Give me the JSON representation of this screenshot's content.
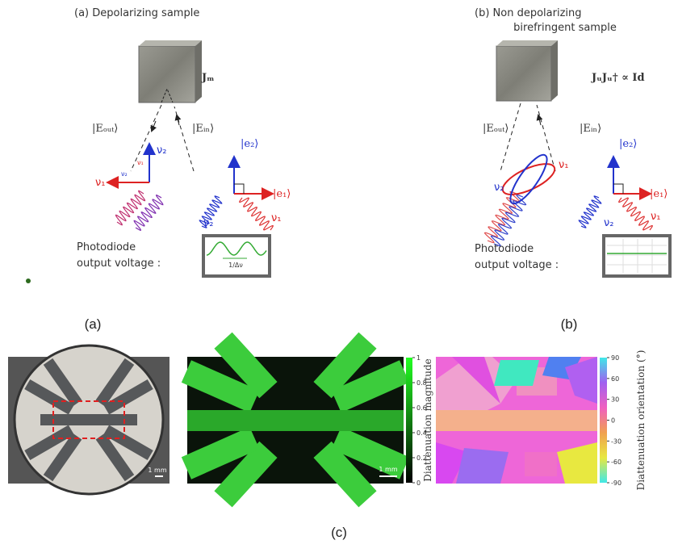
{
  "panel_a": {
    "title": "(a) Depolarizing sample",
    "matrix": "Jₘ",
    "e_out": "|Eₒᵤₜ⟩",
    "e_in": "|Eᵢₙ⟩",
    "e2": "|e₂⟩",
    "e1": "|e₁⟩",
    "nu1": "ν₁",
    "nu2": "ν₂",
    "photodiode": [
      "Photodiode",
      "output voltage :"
    ],
    "period": "1/Δν"
  },
  "panel_b": {
    "title": [
      "(b) Non depolarizing",
      "birefringent sample"
    ],
    "matrix": "JᵤJᵤ† ∝ Id",
    "e_out": "|Eₒᵤₜ⟩",
    "e_in": "|Eᵢₙ⟩",
    "e2": "|e₂⟩",
    "e1": "|e₁⟩",
    "nu1": "ν₁",
    "nu2": "ν₂",
    "photodiode": [
      "Photodiode",
      "output voltage :"
    ]
  },
  "captions": [
    "(a)",
    "(b)",
    "(c)"
  ],
  "images": {
    "scale_bars": [
      "1 mm",
      "1 mm"
    ],
    "colorbars": [
      {
        "label": "Diattenuation magnitude",
        "ticks": [
          0,
          0.2,
          0.4,
          0.6,
          0.8,
          1
        ]
      },
      {
        "label": "Diattenuation orientation (°)",
        "ticks": [
          90,
          60,
          30,
          0,
          -30,
          -60,
          -90
        ]
      }
    ]
  }
}
